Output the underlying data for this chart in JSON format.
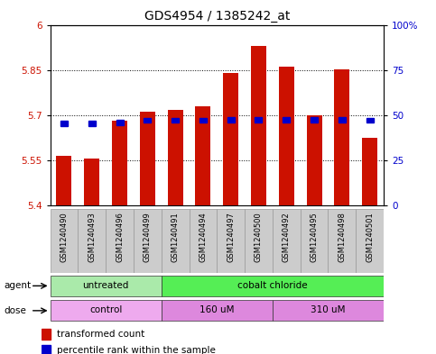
{
  "title": "GDS4954 / 1385242_at",
  "samples": [
    "GSM1240490",
    "GSM1240493",
    "GSM1240496",
    "GSM1240499",
    "GSM1240491",
    "GSM1240494",
    "GSM1240497",
    "GSM1240500",
    "GSM1240492",
    "GSM1240495",
    "GSM1240498",
    "GSM1240501"
  ],
  "bar_values": [
    5.565,
    5.555,
    5.682,
    5.712,
    5.718,
    5.73,
    5.84,
    5.93,
    5.86,
    5.7,
    5.852,
    5.625
  ],
  "percentile_values": [
    5.672,
    5.672,
    5.675,
    5.682,
    5.682,
    5.682,
    5.684,
    5.684,
    5.684,
    5.684,
    5.684,
    5.682
  ],
  "bar_bottom": 5.4,
  "y_min": 5.4,
  "y_max": 6.0,
  "y_ticks": [
    5.4,
    5.55,
    5.7,
    5.85,
    6.0
  ],
  "y_tick_labels": [
    "5.4",
    "5.55",
    "5.7",
    "5.85",
    "6"
  ],
  "right_y_ticks": [
    5.4,
    5.55,
    5.7,
    5.85,
    6.0
  ],
  "right_y_labels": [
    "0",
    "25",
    "50",
    "75",
    "100%"
  ],
  "bar_color": "#cc1100",
  "percentile_color": "#0000cc",
  "agent_groups": [
    {
      "label": "untreated",
      "start": 0,
      "end": 4,
      "color": "#aaeaaa"
    },
    {
      "label": "cobalt chloride",
      "start": 4,
      "end": 12,
      "color": "#55ee55"
    }
  ],
  "dose_groups": [
    {
      "label": "control",
      "start": 0,
      "end": 4,
      "color": "#eeaaee"
    },
    {
      "label": "160 uM",
      "start": 4,
      "end": 8,
      "color": "#dd88dd"
    },
    {
      "label": "310 uM",
      "start": 8,
      "end": 12,
      "color": "#dd88dd"
    }
  ],
  "agent_label": "agent",
  "dose_label": "dose",
  "legend_items": [
    {
      "label": "transformed count",
      "color": "#cc1100"
    },
    {
      "label": "percentile rank within the sample",
      "color": "#0000cc"
    }
  ],
  "background_color": "#ffffff",
  "title_fontsize": 10,
  "tick_fontsize": 7.5,
  "sample_label_fontsize": 6,
  "sample_box_color": "#cccccc",
  "bar_width": 0.55
}
